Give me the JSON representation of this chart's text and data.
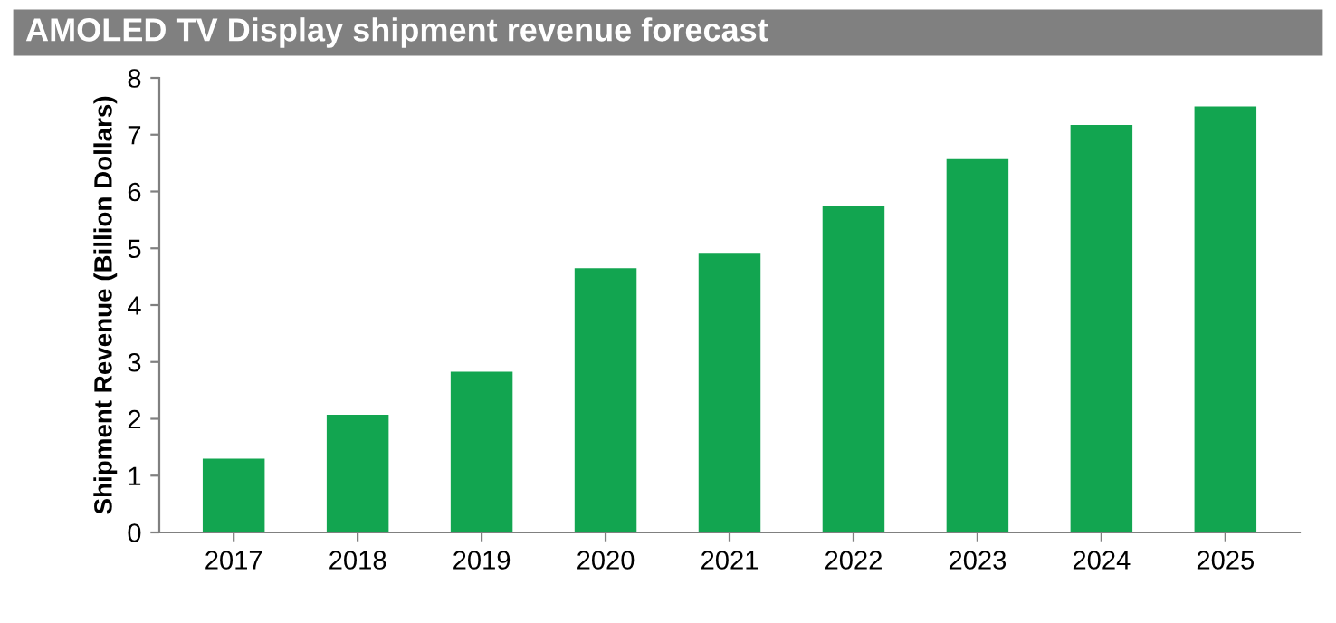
{
  "chart_data": {
    "type": "bar",
    "title": "AMOLED TV Display shipment revenue forecast",
    "ylabel": "Shipment Revenue (Billion Dollars)",
    "categories": [
      "2017",
      "2018",
      "2019",
      "2020",
      "2021",
      "2022",
      "2023",
      "2024",
      "2025"
    ],
    "values": [
      1.3,
      2.07,
      2.83,
      4.65,
      4.92,
      5.75,
      6.57,
      7.17,
      7.5
    ],
    "color": "#12a550",
    "ylim": [
      0,
      8
    ],
    "yticks": [
      0,
      1,
      2,
      3,
      4,
      5,
      6,
      7,
      8
    ],
    "grid": false,
    "legend": false
  }
}
